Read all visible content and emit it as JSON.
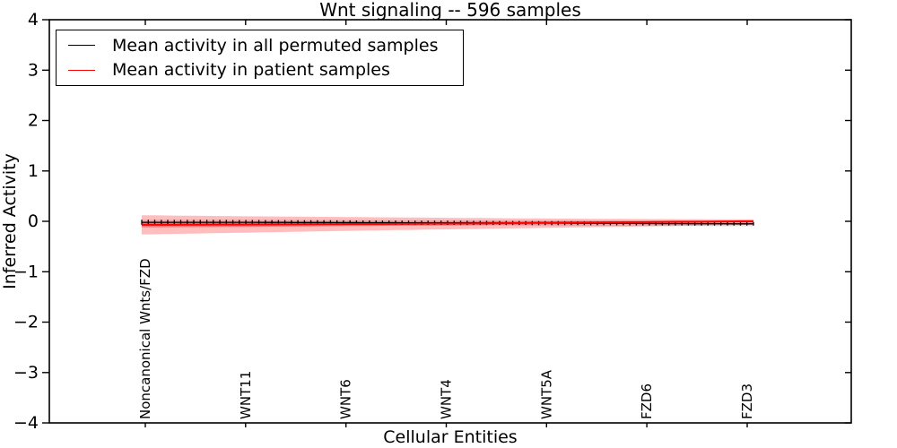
{
  "title": "Wnt signaling -- 596 samples",
  "legend": {
    "items": [
      {
        "label": "Mean activity in all permuted samples",
        "color": "#000000"
      },
      {
        "label": "Mean activity in patient samples",
        "color": "#ff0000"
      }
    ]
  },
  "chart_data": {
    "type": "line",
    "title": "Wnt signaling -- 596 samples",
    "xlabel": "Cellular Entities",
    "ylabel": "Inferred Activity",
    "ylim": [
      -4,
      4
    ],
    "yticks": [
      4,
      3,
      2,
      1,
      0,
      -1,
      -2,
      -3,
      -4
    ],
    "grid": false,
    "legend_position": "upper left",
    "n_points": 95,
    "categories": [
      "Noncanonical Wnts/FZD",
      "WNT11",
      "WNT6",
      "WNT4",
      "WNT5A",
      "FZD6",
      "FZD3"
    ],
    "series": [
      {
        "name": "Mean activity in all permuted samples",
        "color": "#000000",
        "style": "solid-with-errorbar-caps",
        "values": [
          -0.02,
          -0.02,
          -0.025,
          -0.03,
          -0.035,
          -0.045,
          -0.05
        ]
      },
      {
        "name": "Mean activity in patient samples",
        "color": "#ff0000",
        "style": "solid",
        "values": [
          -0.07,
          -0.065,
          -0.055,
          -0.045,
          -0.03,
          -0.015,
          0.0
        ]
      }
    ],
    "bands": [
      {
        "name": "permuted-std-band",
        "color": "#999999",
        "opacity": 0.3,
        "upper": [
          0.03,
          0.03,
          0.025,
          0.02,
          0.015,
          0.005,
          0.0
        ],
        "lower": [
          -0.07,
          -0.07,
          -0.075,
          -0.08,
          -0.085,
          -0.095,
          -0.1
        ]
      },
      {
        "name": "patient-std-outer-band",
        "color": "#ff0000",
        "opacity": 0.26,
        "upper": [
          0.12,
          0.1,
          0.085,
          0.07,
          0.055,
          0.045,
          0.04
        ],
        "lower": [
          -0.26,
          -0.225,
          -0.19,
          -0.16,
          -0.13,
          -0.1,
          -0.07
        ]
      },
      {
        "name": "patient-std-inner-band",
        "color": "#ff0000",
        "opacity": 0.38,
        "upper": [
          -0.02,
          -0.02,
          -0.015,
          -0.01,
          0.0,
          0.01,
          0.02
        ],
        "lower": [
          -0.12,
          -0.11,
          -0.095,
          -0.08,
          -0.06,
          -0.04,
          -0.02
        ]
      }
    ]
  }
}
